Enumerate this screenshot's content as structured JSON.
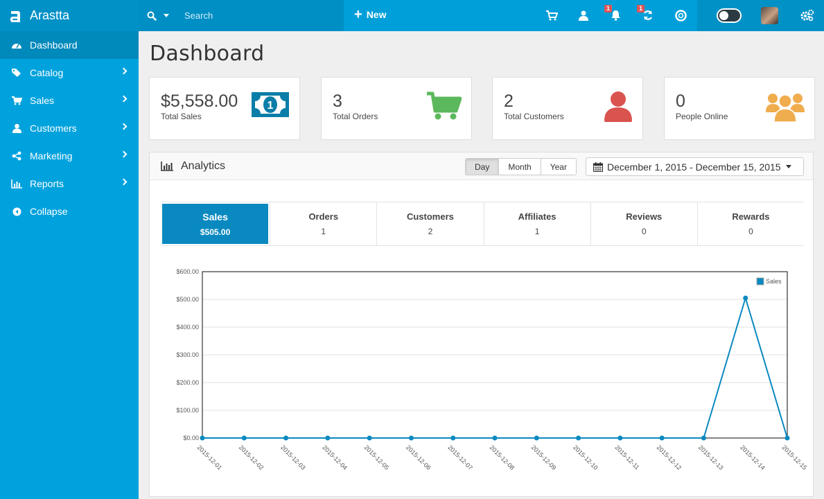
{
  "brand": {
    "name": "Arastta"
  },
  "search": {
    "placeholder": "Search"
  },
  "header": {
    "new_label": "New",
    "notifications_count": "1",
    "updates_count": "1"
  },
  "sidebar": {
    "items": [
      {
        "label": "Dashboard",
        "icon": "dashboard-icon",
        "has_children": false
      },
      {
        "label": "Catalog",
        "icon": "tags-icon",
        "has_children": true
      },
      {
        "label": "Sales",
        "icon": "cart-icon",
        "has_children": true
      },
      {
        "label": "Customers",
        "icon": "user-icon",
        "has_children": true
      },
      {
        "label": "Marketing",
        "icon": "share-icon",
        "has_children": true
      },
      {
        "label": "Reports",
        "icon": "bar-chart-icon",
        "has_children": true
      },
      {
        "label": "Collapse",
        "icon": "circle-left-icon",
        "has_children": false
      }
    ]
  },
  "page": {
    "title": "Dashboard"
  },
  "stats": [
    {
      "value": "$5,558.00",
      "label": "Total Sales",
      "icon": "money-icon",
      "color": "#0a7ea8"
    },
    {
      "value": "3",
      "label": "Total Orders",
      "icon": "cart-icon",
      "color": "#5cb85c"
    },
    {
      "value": "2",
      "label": "Total Customers",
      "icon": "user-icon",
      "color": "#d9534f"
    },
    {
      "value": "0",
      "label": "People Online",
      "icon": "users-icon",
      "color": "#f0ad4e"
    }
  ],
  "analytics": {
    "title": "Analytics",
    "ranges": [
      "Day",
      "Month",
      "Year"
    ],
    "active_range": "Day",
    "date_range": "December 1, 2015 - December 15, 2015",
    "tabs": [
      {
        "name": "Sales",
        "value": "$505.00"
      },
      {
        "name": "Orders",
        "value": "1"
      },
      {
        "name": "Customers",
        "value": "2"
      },
      {
        "name": "Affiliates",
        "value": "1"
      },
      {
        "name": "Reviews",
        "value": "0"
      },
      {
        "name": "Rewards",
        "value": "0"
      }
    ]
  },
  "chart_data": {
    "type": "line",
    "x": [
      "2015-12-01",
      "2015-12-02",
      "2015-12-03",
      "2015-12-04",
      "2015-12-05",
      "2015-12-06",
      "2015-12-07",
      "2015-12-08",
      "2015-12-09",
      "2015-12-10",
      "2015-12-11",
      "2015-12-12",
      "2015-12-13",
      "2015-12-14",
      "2015-12-15"
    ],
    "series": [
      {
        "name": "Sales",
        "color": "#0a89c0",
        "values": [
          0,
          0,
          0,
          0,
          0,
          0,
          0,
          0,
          0,
          0,
          0,
          0,
          0,
          505,
          0
        ]
      }
    ],
    "yticks": [
      "$0.00",
      "$100.00",
      "$200.00",
      "$300.00",
      "$400.00",
      "$500.00",
      "$600.00"
    ],
    "ylim": [
      0,
      600
    ],
    "grid": true,
    "legend": "top-right"
  }
}
